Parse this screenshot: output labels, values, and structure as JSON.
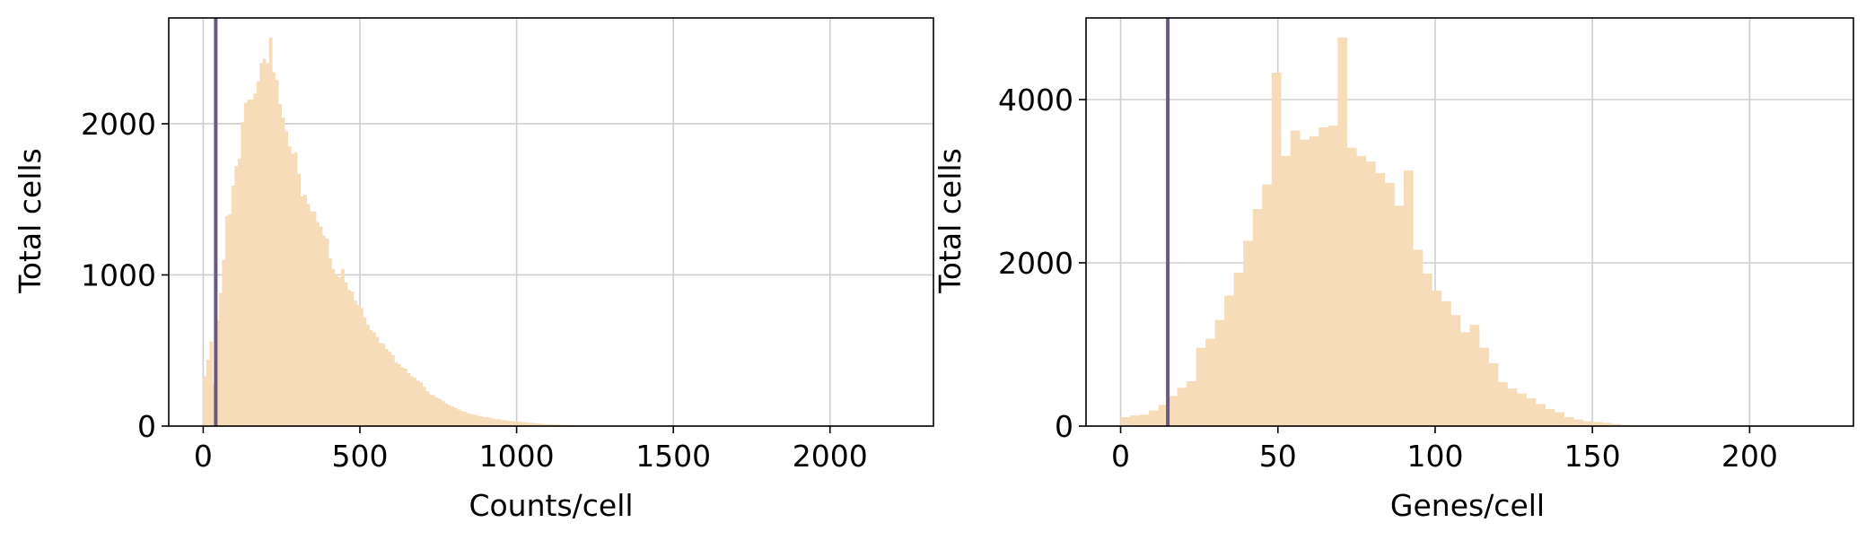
{
  "chart_data": [
    {
      "type": "bar",
      "subtype": "histogram",
      "xlabel": "Counts/cell",
      "ylabel": "Total cells",
      "xlim": [
        -110,
        2330
      ],
      "ylim": [
        0,
        2700
      ],
      "xticks": [
        0,
        500,
        1000,
        1500,
        2000
      ],
      "yticks": [
        0,
        1000,
        2000
      ],
      "grid": true,
      "bar_color": "#f7dcb9",
      "threshold_line": {
        "x": 40,
        "color": "#6b5b7b"
      },
      "bin_width": 10,
      "bins": [
        [
          0,
          330
        ],
        [
          10,
          440
        ],
        [
          20,
          560
        ],
        [
          30,
          280
        ],
        [
          40,
          700
        ],
        [
          50,
          880
        ],
        [
          60,
          1100
        ],
        [
          70,
          1390
        ],
        [
          80,
          1400
        ],
        [
          90,
          1590
        ],
        [
          100,
          1720
        ],
        [
          110,
          1770
        ],
        [
          120,
          2010
        ],
        [
          130,
          2140
        ],
        [
          140,
          2160
        ],
        [
          150,
          2160
        ],
        [
          160,
          2200
        ],
        [
          170,
          2280
        ],
        [
          180,
          2400
        ],
        [
          190,
          2430
        ],
        [
          200,
          2400
        ],
        [
          210,
          2570
        ],
        [
          220,
          2340
        ],
        [
          230,
          2290
        ],
        [
          240,
          2130
        ],
        [
          250,
          2040
        ],
        [
          260,
          1950
        ],
        [
          270,
          1850
        ],
        [
          280,
          1800
        ],
        [
          290,
          1810
        ],
        [
          300,
          1670
        ],
        [
          310,
          1520
        ],
        [
          320,
          1530
        ],
        [
          330,
          1470
        ],
        [
          340,
          1420
        ],
        [
          350,
          1420
        ],
        [
          360,
          1350
        ],
        [
          370,
          1320
        ],
        [
          380,
          1260
        ],
        [
          390,
          1240
        ],
        [
          400,
          1110
        ],
        [
          410,
          1040
        ],
        [
          420,
          1000
        ],
        [
          430,
          985
        ],
        [
          440,
          1040
        ],
        [
          450,
          950
        ],
        [
          460,
          900
        ],
        [
          470,
          890
        ],
        [
          480,
          830
        ],
        [
          490,
          800
        ],
        [
          500,
          780
        ],
        [
          510,
          720
        ],
        [
          520,
          670
        ],
        [
          530,
          635
        ],
        [
          540,
          620
        ],
        [
          550,
          590
        ],
        [
          560,
          550
        ],
        [
          570,
          545
        ],
        [
          580,
          510
        ],
        [
          590,
          490
        ],
        [
          600,
          470
        ],
        [
          610,
          420
        ],
        [
          620,
          410
        ],
        [
          630,
          390
        ],
        [
          640,
          380
        ],
        [
          650,
          350
        ],
        [
          660,
          330
        ],
        [
          670,
          320
        ],
        [
          680,
          300
        ],
        [
          690,
          290
        ],
        [
          700,
          260
        ],
        [
          710,
          230
        ],
        [
          720,
          210
        ],
        [
          730,
          205
        ],
        [
          740,
          190
        ],
        [
          750,
          180
        ],
        [
          760,
          165
        ],
        [
          770,
          150
        ],
        [
          780,
          140
        ],
        [
          790,
          130
        ],
        [
          800,
          120
        ],
        [
          810,
          110
        ],
        [
          820,
          100
        ],
        [
          830,
          95
        ],
        [
          840,
          85
        ],
        [
          850,
          80
        ],
        [
          860,
          75
        ],
        [
          870,
          70
        ],
        [
          880,
          65
        ],
        [
          890,
          60
        ],
        [
          900,
          60
        ],
        [
          910,
          55
        ],
        [
          920,
          50
        ],
        [
          930,
          45
        ],
        [
          940,
          45
        ],
        [
          950,
          40
        ],
        [
          960,
          38
        ],
        [
          970,
          35
        ],
        [
          980,
          33
        ],
        [
          990,
          30
        ],
        [
          1000,
          30
        ],
        [
          1010,
          28
        ],
        [
          1020,
          26
        ],
        [
          1030,
          24
        ],
        [
          1040,
          22
        ],
        [
          1050,
          20
        ],
        [
          1060,
          18
        ],
        [
          1070,
          16
        ],
        [
          1080,
          14
        ],
        [
          1090,
          13
        ],
        [
          1100,
          12
        ],
        [
          1110,
          11
        ],
        [
          1120,
          10
        ],
        [
          1130,
          9
        ],
        [
          1140,
          8
        ],
        [
          1150,
          8
        ],
        [
          1160,
          7
        ],
        [
          1170,
          6
        ],
        [
          1180,
          5
        ],
        [
          1190,
          5
        ],
        [
          1200,
          4
        ],
        [
          1210,
          4
        ],
        [
          1220,
          3
        ],
        [
          1230,
          3
        ],
        [
          1240,
          3
        ],
        [
          1250,
          2
        ],
        [
          1260,
          2
        ],
        [
          1270,
          2
        ],
        [
          1280,
          2
        ],
        [
          1290,
          1
        ]
      ]
    },
    {
      "type": "bar",
      "subtype": "histogram",
      "xlabel": "Genes/cell",
      "ylabel": "Total cells",
      "xlim": [
        -11,
        233
      ],
      "ylim": [
        0,
        5000
      ],
      "xticks": [
        0,
        50,
        100,
        150,
        200
      ],
      "yticks": [
        0,
        2000,
        4000
      ],
      "grid": true,
      "bar_color": "#f7dcb9",
      "threshold_line": {
        "x": 15,
        "color": "#6b5b7b"
      },
      "bin_width": 3,
      "bins": [
        [
          0,
          110
        ],
        [
          3,
          130
        ],
        [
          6,
          140
        ],
        [
          9,
          190
        ],
        [
          12,
          260
        ],
        [
          15,
          370
        ],
        [
          18,
          470
        ],
        [
          21,
          550
        ],
        [
          24,
          960
        ],
        [
          27,
          1070
        ],
        [
          30,
          1300
        ],
        [
          33,
          1600
        ],
        [
          36,
          1880
        ],
        [
          39,
          2270
        ],
        [
          42,
          2660
        ],
        [
          45,
          2960
        ],
        [
          48,
          4330
        ],
        [
          51,
          3310
        ],
        [
          54,
          3620
        ],
        [
          57,
          3510
        ],
        [
          60,
          3550
        ],
        [
          63,
          3660
        ],
        [
          66,
          3680
        ],
        [
          69,
          4760
        ],
        [
          72,
          3410
        ],
        [
          75,
          3310
        ],
        [
          78,
          3240
        ],
        [
          81,
          3100
        ],
        [
          84,
          2980
        ],
        [
          87,
          2700
        ],
        [
          90,
          3130
        ],
        [
          93,
          2160
        ],
        [
          96,
          1870
        ],
        [
          99,
          1660
        ],
        [
          102,
          1530
        ],
        [
          105,
          1360
        ],
        [
          108,
          1150
        ],
        [
          111,
          1240
        ],
        [
          114,
          960
        ],
        [
          117,
          770
        ],
        [
          120,
          540
        ],
        [
          123,
          460
        ],
        [
          126,
          400
        ],
        [
          129,
          340
        ],
        [
          132,
          270
        ],
        [
          135,
          210
        ],
        [
          138,
          170
        ],
        [
          141,
          110
        ],
        [
          144,
          80
        ],
        [
          147,
          60
        ],
        [
          150,
          50
        ],
        [
          153,
          40
        ],
        [
          156,
          25
        ],
        [
          159,
          15
        ],
        [
          162,
          10
        ],
        [
          165,
          6
        ],
        [
          168,
          4
        ],
        [
          171,
          2
        ],
        [
          174,
          1
        ],
        [
          177,
          1
        ]
      ]
    }
  ]
}
